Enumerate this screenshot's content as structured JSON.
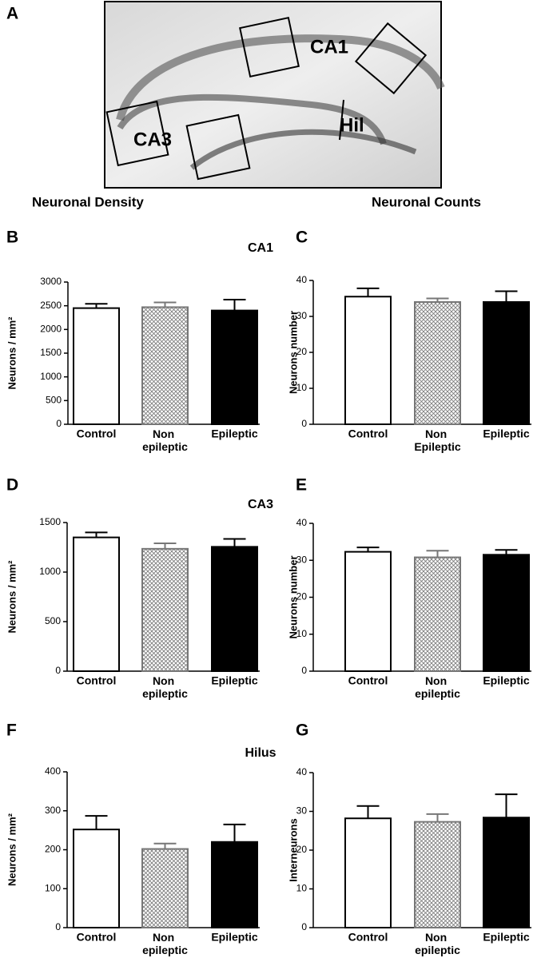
{
  "figure": {
    "panel_a": {
      "letter": "A",
      "labels": [
        "CA1",
        "CA3",
        "Hil"
      ]
    },
    "headings": [
      "Neuronal Density",
      "Neuronal Counts"
    ],
    "sections": [
      "CA1",
      "CA3",
      "Hilus"
    ]
  },
  "chart_data": [
    {
      "type": "bar",
      "panel": "B",
      "ylabel": "Neurons / mm²",
      "categories": [
        "Control",
        "Non epileptic",
        "Epileptic"
      ],
      "values": [
        2450,
        2470,
        2400
      ],
      "errors": [
        90,
        100,
        230
      ],
      "fills": [
        "#ffffff",
        "hatch",
        "#000000"
      ],
      "ylim": [
        0,
        3000
      ],
      "yticks": [
        0,
        500,
        1000,
        1500,
        2000,
        2500,
        3000
      ]
    },
    {
      "type": "bar",
      "panel": "C",
      "ylabel": "Neurons number",
      "categories": [
        "Control",
        "Non Epileptic",
        "Epileptic"
      ],
      "values": [
        35.5,
        34,
        34
      ],
      "errors": [
        2.3,
        1,
        3
      ],
      "fills": [
        "#ffffff",
        "hatch",
        "#000000"
      ],
      "ylim": [
        0,
        40
      ],
      "yticks": [
        0,
        10,
        20,
        30,
        40
      ]
    },
    {
      "type": "bar",
      "panel": "D",
      "ylabel": "Neurons / mm²",
      "categories": [
        "Control",
        "Non epileptic",
        "Epileptic"
      ],
      "values": [
        1350,
        1235,
        1255
      ],
      "errors": [
        50,
        55,
        80
      ],
      "fills": [
        "#ffffff",
        "hatch",
        "#000000"
      ],
      "ylim": [
        0,
        1500
      ],
      "yticks": [
        0,
        500,
        1000,
        1500
      ]
    },
    {
      "type": "bar",
      "panel": "E",
      "ylabel": "Neurons number",
      "categories": [
        "Control",
        "Non epileptic",
        "Epileptic"
      ],
      "values": [
        32.3,
        30.8,
        31.5
      ],
      "errors": [
        1.2,
        1.8,
        1.3
      ],
      "fills": [
        "#ffffff",
        "hatch",
        "#000000"
      ],
      "ylim": [
        0,
        40
      ],
      "yticks": [
        0,
        10,
        20,
        30,
        40
      ]
    },
    {
      "type": "bar",
      "panel": "F",
      "ylabel": "Neurons / mm²",
      "categories": [
        "Control",
        "Non epileptic",
        "Epileptic"
      ],
      "values": [
        252,
        202,
        220
      ],
      "errors": [
        35,
        14,
        45
      ],
      "fills": [
        "#ffffff",
        "hatch",
        "#000000"
      ],
      "ylim": [
        0,
        400
      ],
      "yticks": [
        0,
        100,
        200,
        300,
        400
      ]
    },
    {
      "type": "bar",
      "panel": "G",
      "ylabel": "Interneurons",
      "categories": [
        "Control",
        "Non epileptic",
        "Epileptic"
      ],
      "values": [
        28.2,
        27.3,
        28.4
      ],
      "errors": [
        3.2,
        2,
        6
      ],
      "fills": [
        "#ffffff",
        "hatch",
        "#000000"
      ],
      "ylim": [
        0,
        40
      ],
      "yticks": [
        0,
        10,
        20,
        30,
        40
      ]
    }
  ]
}
